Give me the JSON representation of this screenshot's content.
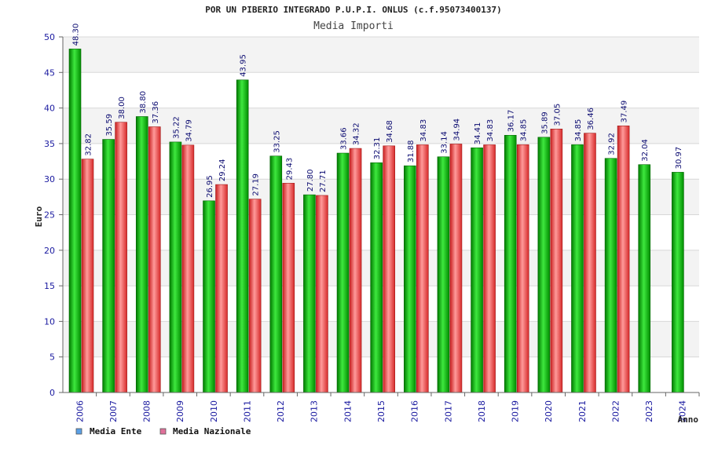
{
  "chart_data": {
    "type": "bar",
    "title": "POR UN PIBERIO INTEGRADO P.U.P.I. ONLUS (c.f.95073400137)",
    "subtitle": "Media Importi",
    "xlabel": "Anno",
    "ylabel": "Euro",
    "ylim": [
      0,
      50
    ],
    "yticks": [
      0,
      5,
      10,
      15,
      20,
      25,
      30,
      35,
      40,
      45,
      50
    ],
    "grid": true,
    "legend_position": "bottom-left",
    "categories": [
      "2006",
      "2007",
      "2008",
      "2009",
      "2010",
      "2011",
      "2012",
      "2013",
      "2014",
      "2015",
      "2016",
      "2017",
      "2018",
      "2019",
      "2020",
      "2021",
      "2022",
      "2023",
      "2024"
    ],
    "series": [
      {
        "name": "Media Ente",
        "color": "#00b400",
        "legend_color": "#5aa0e6",
        "values": [
          48.3,
          35.59,
          38.8,
          35.22,
          26.95,
          43.95,
          33.25,
          27.8,
          33.66,
          32.31,
          31.88,
          33.14,
          34.41,
          36.17,
          35.89,
          34.85,
          32.92,
          32.04,
          30.97
        ],
        "labels": [
          "48.30",
          "35.59",
          "38.80",
          "35.22",
          "26.95",
          "43.95",
          "33.25",
          "27.80",
          "33.66",
          "32.31",
          "31.88",
          "33.14",
          "34.41",
          "36.17",
          "35.89",
          "34.85",
          "32.92",
          "32.04",
          "30.97"
        ]
      },
      {
        "name": "Media Nazionale",
        "color": "#e83a3a",
        "legend_color": "#e0709a",
        "values": [
          32.82,
          38.0,
          37.36,
          34.79,
          29.24,
          27.19,
          29.43,
          27.71,
          34.32,
          34.68,
          34.83,
          34.94,
          34.83,
          34.85,
          37.05,
          36.46,
          37.49,
          null,
          null
        ],
        "labels": [
          "32.82",
          "38.00",
          "37.36",
          "34.79",
          "29.24",
          "27.19",
          "29.43",
          "27.71",
          "34.32",
          "34.68",
          "34.83",
          "34.94",
          "34.83",
          "34.85",
          "37.05",
          "36.46",
          "37.49",
          null,
          null
        ]
      }
    ]
  }
}
